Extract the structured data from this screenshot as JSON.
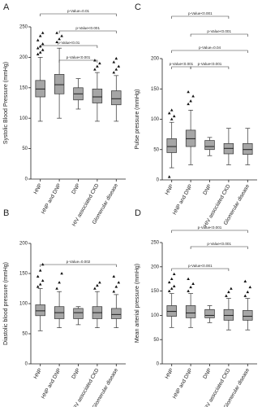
{
  "chart_data": [
    {
      "panel": "A",
      "type": "box",
      "y_label": "Systolic Blood Pressure (mmHg)",
      "categories": [
        "HNP",
        "HNP and DNP",
        "DNP",
        "HIV associated CKD",
        "Glomerular disease"
      ],
      "color": "#a6a6a6",
      "boxes": [
        {
          "min": 95,
          "q1": 135,
          "median": 148,
          "q3": 162,
          "max": 200,
          "outliers": [
            205,
            208,
            212,
            215,
            218,
            222,
            228,
            235,
            240
          ]
        },
        {
          "min": 100,
          "q1": 140,
          "median": 155,
          "q3": 172,
          "max": 215,
          "outliers": [
            225,
            230,
            235,
            240
          ]
        },
        {
          "min": 115,
          "q1": 130,
          "median": 140,
          "q3": 150,
          "max": 165,
          "outliers": []
        },
        {
          "min": 95,
          "q1": 125,
          "median": 135,
          "q3": 148,
          "max": 175,
          "outliers": [
            180,
            185,
            190,
            195
          ]
        },
        {
          "min": 95,
          "q1": 122,
          "median": 132,
          "q3": 145,
          "max": 170,
          "outliers": [
            175,
            180,
            185,
            192,
            198
          ]
        }
      ],
      "ylim": [
        0,
        250
      ],
      "yticks": [
        0,
        50,
        100,
        150,
        200,
        250
      ],
      "annotations": [
        {
          "text": "p-Value=0.01",
          "between": [
            "HNP",
            "Glomerular disease"
          ]
        },
        {
          "text": "p-Value<0.001",
          "between": [
            "HNP and DNP",
            "Glomerular disease"
          ]
        },
        {
          "text": "p-Value<0.01",
          "between": [
            "HNP",
            "HIV associated CKD"
          ]
        },
        {
          "text": "p-Value<0.001",
          "between": [
            "HNP and DNP",
            "HIV associated CKD"
          ]
        }
      ]
    },
    {
      "panel": "C",
      "type": "box",
      "y_label": "Pulse pressure (mmHg)",
      "categories": [
        "HNP",
        "HNP and DNP",
        "DNP",
        "HIV associated CKD",
        "Glomerular disease"
      ],
      "color": "#a6a6a6",
      "boxes": [
        {
          "min": 20,
          "q1": 45,
          "median": 55,
          "q3": 68,
          "max": 95,
          "outliers": [
            5,
            100,
            105,
            110,
            115
          ]
        },
        {
          "min": 25,
          "q1": 55,
          "median": 68,
          "q3": 82,
          "max": 115,
          "outliers": [
            125,
            130,
            138,
            145
          ]
        },
        {
          "min": 40,
          "q1": 50,
          "median": 55,
          "q3": 65,
          "max": 70,
          "outliers": []
        },
        {
          "min": 25,
          "q1": 43,
          "median": 52,
          "q3": 60,
          "max": 85,
          "outliers": []
        },
        {
          "min": 25,
          "q1": 42,
          "median": 50,
          "q3": 60,
          "max": 85,
          "outliers": []
        }
      ],
      "ylim": [
        0,
        200
      ],
      "yticks": [
        0,
        50,
        100,
        150,
        200
      ],
      "annotations": [
        {
          "text": "p-Value<0.001",
          "between": [
            "HNP",
            "HIV associated CKD"
          ]
        },
        {
          "text": "p-Value<0.001",
          "between": [
            "HNP and DNP",
            "Glomerular disease"
          ]
        },
        {
          "text": "p-Value=0.04",
          "between": [
            "HNP",
            "Glomerular disease"
          ]
        },
        {
          "text": "p-Value<0.001",
          "between": [
            "HNP",
            "HNP and DNP"
          ]
        },
        {
          "text": "p-Value<0.001",
          "between": [
            "HNP and DNP",
            "HIV associated CKD"
          ]
        }
      ]
    },
    {
      "panel": "B",
      "type": "box",
      "y_label": "Diastolic blood pressure (mmHg)",
      "categories": [
        "HNP",
        "HNP and DNP",
        "DNP",
        "HIV associated CKD",
        "Glomerular disease"
      ],
      "color": "#a6a6a6",
      "boxes": [
        {
          "min": 55,
          "q1": 80,
          "median": 88,
          "q3": 98,
          "max": 125,
          "outliers": [
            128,
            132,
            138,
            145,
            155,
            165
          ]
        },
        {
          "min": 60,
          "q1": 75,
          "median": 85,
          "q3": 95,
          "max": 120,
          "outliers": [
            125,
            135,
            150
          ]
        },
        {
          "min": 65,
          "q1": 75,
          "median": 85,
          "q3": 92,
          "max": 95,
          "outliers": []
        },
        {
          "min": 60,
          "q1": 75,
          "median": 85,
          "q3": 95,
          "max": 120,
          "outliers": [
            125,
            130,
            135
          ]
        },
        {
          "min": 60,
          "q1": 75,
          "median": 82,
          "q3": 92,
          "max": 115,
          "outliers": [
            120,
            128,
            135,
            145
          ]
        }
      ],
      "ylim": [
        0,
        200
      ],
      "yticks": [
        0,
        50,
        100,
        150,
        200
      ],
      "annotations": [
        {
          "text": "p-Value=0.002",
          "between": [
            "HNP",
            "Glomerular disease"
          ]
        }
      ]
    },
    {
      "panel": "D",
      "type": "box",
      "y_label": "Mean arterial pressure (mmHg)",
      "categories": [
        "HNP",
        "HNP and DNP",
        "DNP",
        "HIV associated CKD",
        "Glomerular disease"
      ],
      "color": "#a6a6a6",
      "boxes": [
        {
          "min": 75,
          "q1": 98,
          "median": 108,
          "q3": 120,
          "max": 145,
          "outliers": [
            150,
            155,
            160,
            168,
            175,
            185
          ]
        },
        {
          "min": 75,
          "q1": 95,
          "median": 105,
          "q3": 120,
          "max": 145,
          "outliers": [
            150,
            158,
            165,
            175
          ]
        },
        {
          "min": 85,
          "q1": 95,
          "median": 100,
          "q3": 112,
          "max": 120,
          "outliers": []
        },
        {
          "min": 70,
          "q1": 90,
          "median": 100,
          "q3": 112,
          "max": 135,
          "outliers": [
            140,
            148,
            155
          ]
        },
        {
          "min": 70,
          "q1": 90,
          "median": 98,
          "q3": 110,
          "max": 135,
          "outliers": [
            140,
            148,
            158,
            170
          ]
        }
      ],
      "ylim": [
        0,
        250
      ],
      "yticks": [
        0,
        50,
        100,
        150,
        200,
        250
      ],
      "annotations": [
        {
          "text": "p-Value<0.001",
          "between": [
            "HNP",
            "Glomerular disease"
          ]
        },
        {
          "text": "p-Value<0.001",
          "between": [
            "HNP and DNP",
            "Glomerular disease"
          ]
        },
        {
          "text": "p-Value<0.001",
          "between": [
            "HNP",
            "HIV associated CKD"
          ]
        }
      ]
    }
  ]
}
